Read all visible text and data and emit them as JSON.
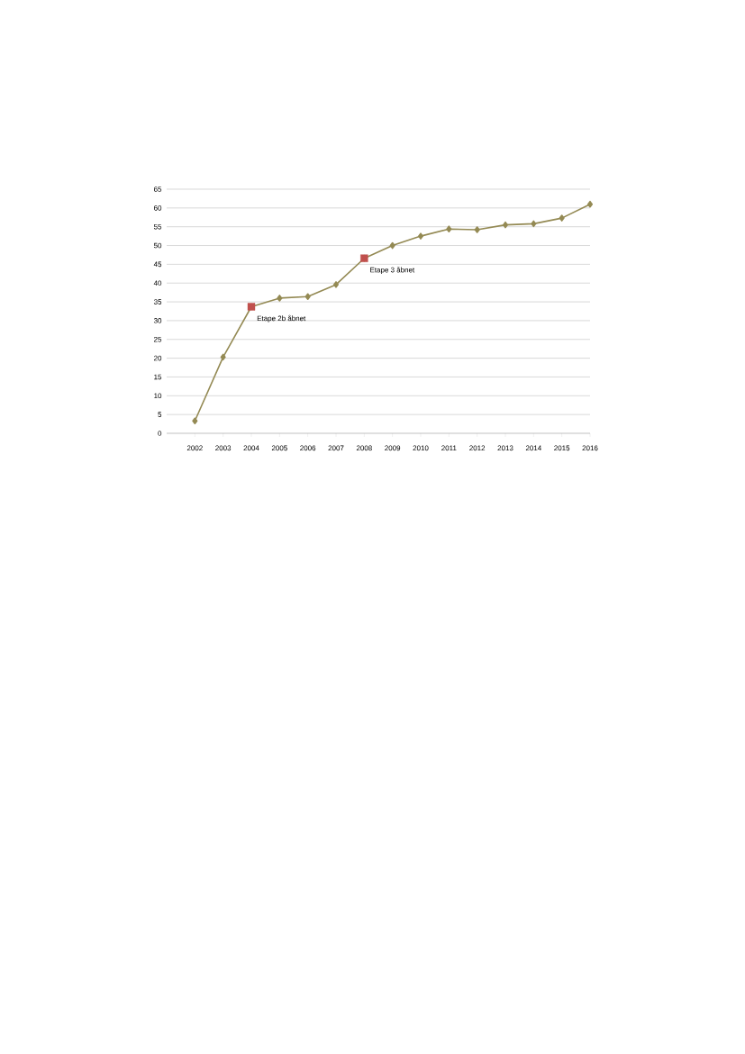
{
  "chart_data": {
    "type": "line",
    "categories": [
      "2002",
      "2003",
      "2004",
      "2005",
      "2006",
      "2007",
      "2008",
      "2009",
      "2010",
      "2011",
      "2012",
      "2013",
      "2014",
      "2015",
      "2016"
    ],
    "series": [
      {
        "color": "#948a54",
        "marker": "diamond",
        "values": [
          3.3,
          20.3,
          33.7,
          36.0,
          36.4,
          39.6,
          46.6,
          50.0,
          52.5,
          54.4,
          54.2,
          55.5,
          55.8,
          57.3,
          61.0
        ]
      },
      {
        "type": "scatter",
        "color": "#c0504d",
        "marker": "square",
        "values": [
          null,
          null,
          33.7,
          null,
          null,
          null,
          46.6,
          null,
          null,
          null,
          null,
          null,
          null,
          null,
          null
        ]
      }
    ],
    "ylim": [
      0,
      65
    ],
    "yticks": [
      0,
      5,
      10,
      15,
      20,
      25,
      30,
      35,
      40,
      45,
      50,
      55,
      60,
      65
    ],
    "grid": "y",
    "line_style": "solid",
    "annotations": [
      {
        "text": "Etape 2b åbnet",
        "x": "2004",
        "y": 33.7
      },
      {
        "text": "Etape 3 åbnet",
        "x": "2008",
        "y": 46.6
      }
    ]
  }
}
